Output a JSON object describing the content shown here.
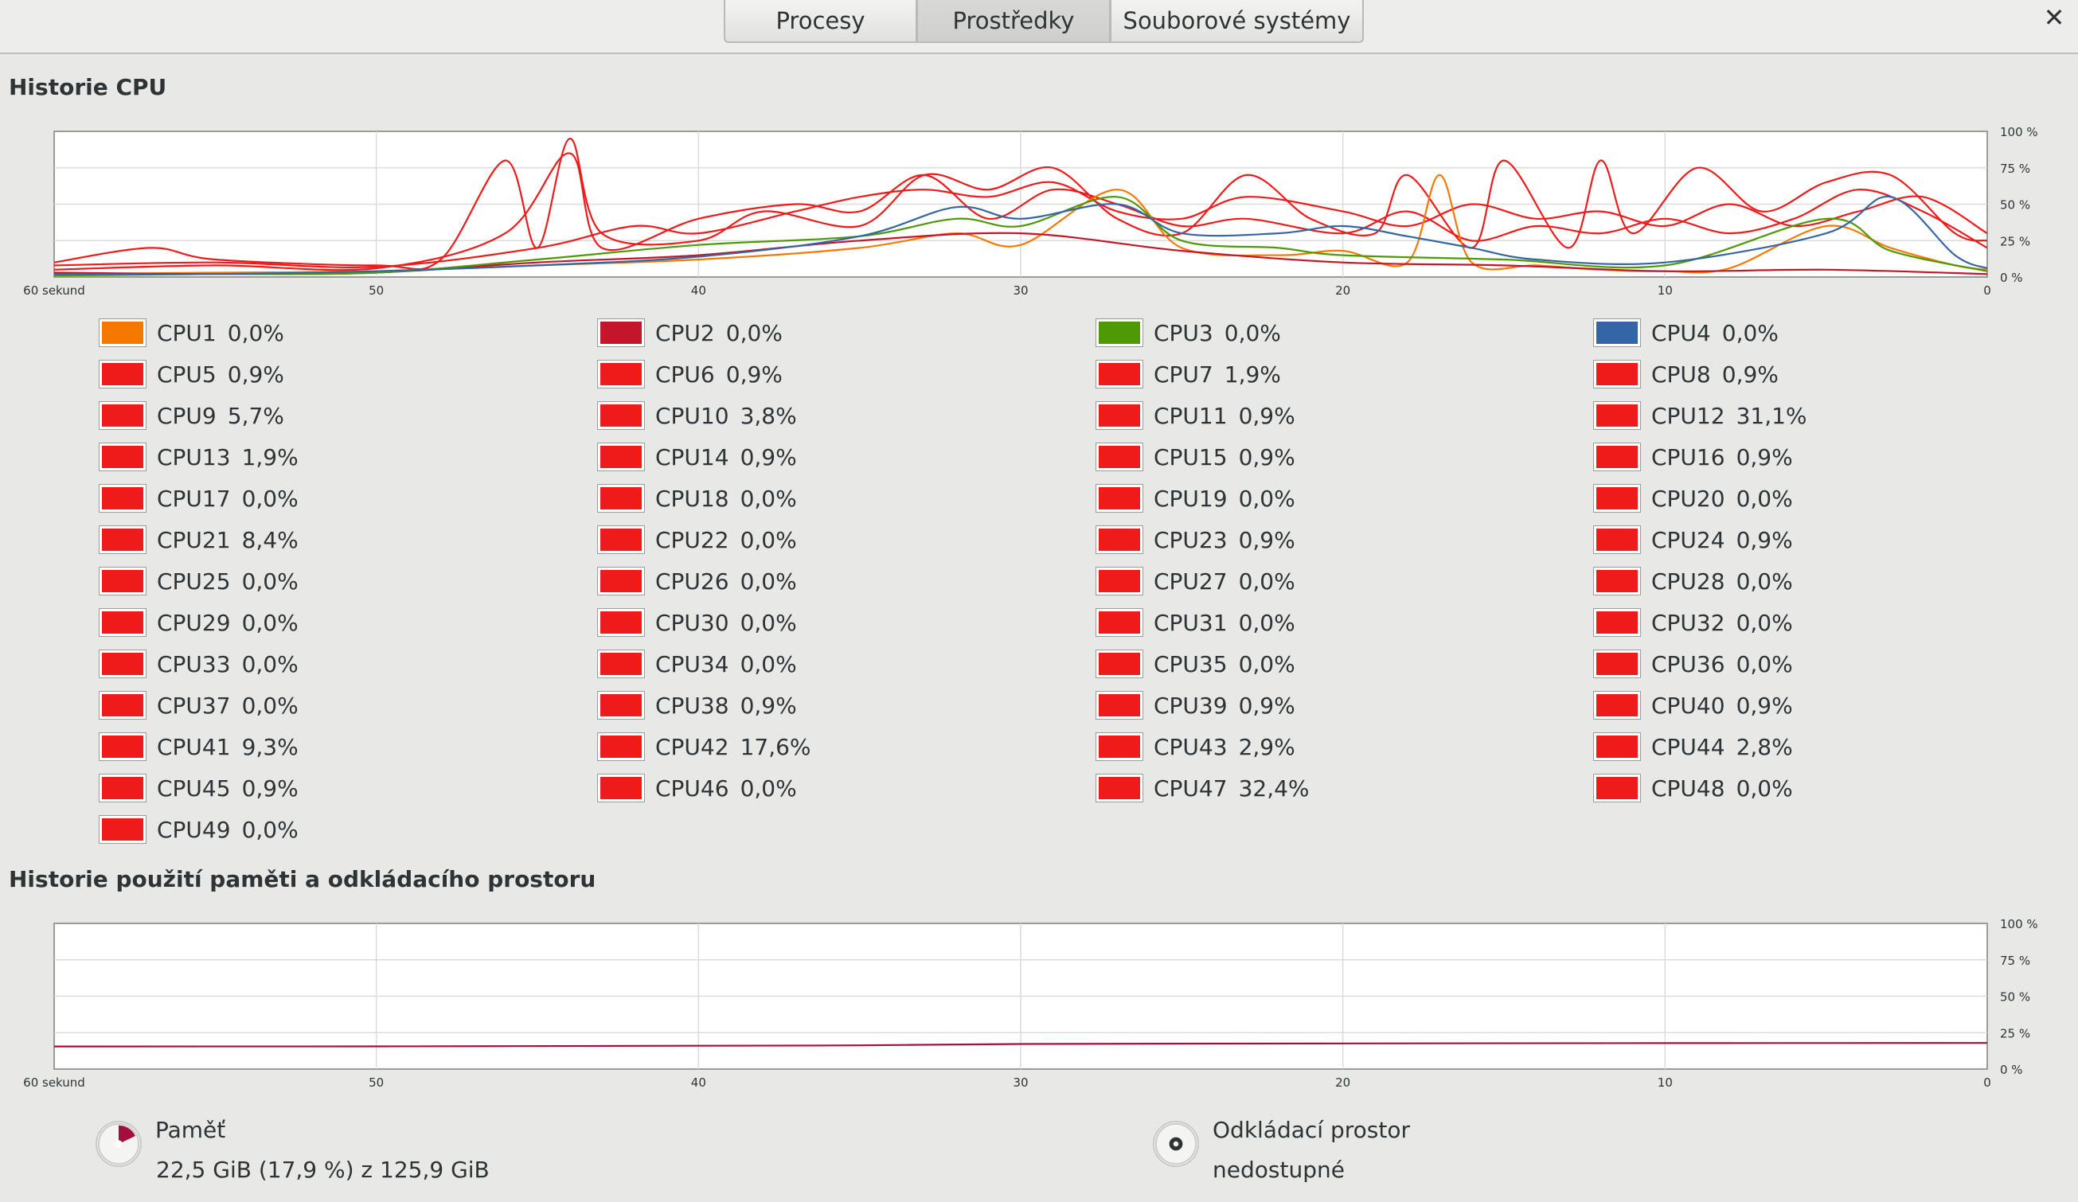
{
  "tabs": [
    {
      "label": "Procesy",
      "active": false
    },
    {
      "label": "Prostředky",
      "active": true
    },
    {
      "label": "Souborové systémy",
      "active": false
    }
  ],
  "close_icon": "close-icon",
  "cpu_section": {
    "title": "Historie CPU",
    "x_labels": [
      "60 sekund",
      "50",
      "40",
      "30",
      "20",
      "10",
      "0"
    ],
    "y_labels": [
      "100 %",
      "75 %",
      "50 %",
      "25 %",
      "0 %"
    ]
  },
  "cpus": [
    {
      "name": "CPU1",
      "value": "0,0%",
      "color": "#f57900"
    },
    {
      "name": "CPU2",
      "value": "0,0%",
      "color": "#c4162a"
    },
    {
      "name": "CPU3",
      "value": "0,0%",
      "color": "#4e9a06"
    },
    {
      "name": "CPU4",
      "value": "0,0%",
      "color": "#3465a4"
    },
    {
      "name": "CPU5",
      "value": "0,9%",
      "color": "#ef1a1a"
    },
    {
      "name": "CPU6",
      "value": "0,9%",
      "color": "#ef1a1a"
    },
    {
      "name": "CPU7",
      "value": "1,9%",
      "color": "#ef1a1a"
    },
    {
      "name": "CPU8",
      "value": "0,9%",
      "color": "#ef1a1a"
    },
    {
      "name": "CPU9",
      "value": "5,7%",
      "color": "#ef1a1a"
    },
    {
      "name": "CPU10",
      "value": "3,8%",
      "color": "#ef1a1a"
    },
    {
      "name": "CPU11",
      "value": "0,9%",
      "color": "#ef1a1a"
    },
    {
      "name": "CPU12",
      "value": "31,1%",
      "color": "#ef1a1a"
    },
    {
      "name": "CPU13",
      "value": "1,9%",
      "color": "#ef1a1a"
    },
    {
      "name": "CPU14",
      "value": "0,9%",
      "color": "#ef1a1a"
    },
    {
      "name": "CPU15",
      "value": "0,9%",
      "color": "#ef1a1a"
    },
    {
      "name": "CPU16",
      "value": "0,9%",
      "color": "#ef1a1a"
    },
    {
      "name": "CPU17",
      "value": "0,0%",
      "color": "#ef1a1a"
    },
    {
      "name": "CPU18",
      "value": "0,0%",
      "color": "#ef1a1a"
    },
    {
      "name": "CPU19",
      "value": "0,0%",
      "color": "#ef1a1a"
    },
    {
      "name": "CPU20",
      "value": "0,0%",
      "color": "#ef1a1a"
    },
    {
      "name": "CPU21",
      "value": "8,4%",
      "color": "#ef1a1a"
    },
    {
      "name": "CPU22",
      "value": "0,0%",
      "color": "#ef1a1a"
    },
    {
      "name": "CPU23",
      "value": "0,9%",
      "color": "#ef1a1a"
    },
    {
      "name": "CPU24",
      "value": "0,9%",
      "color": "#ef1a1a"
    },
    {
      "name": "CPU25",
      "value": "0,0%",
      "color": "#ef1a1a"
    },
    {
      "name": "CPU26",
      "value": "0,0%",
      "color": "#ef1a1a"
    },
    {
      "name": "CPU27",
      "value": "0,0%",
      "color": "#ef1a1a"
    },
    {
      "name": "CPU28",
      "value": "0,0%",
      "color": "#ef1a1a"
    },
    {
      "name": "CPU29",
      "value": "0,0%",
      "color": "#ef1a1a"
    },
    {
      "name": "CPU30",
      "value": "0,0%",
      "color": "#ef1a1a"
    },
    {
      "name": "CPU31",
      "value": "0,0%",
      "color": "#ef1a1a"
    },
    {
      "name": "CPU32",
      "value": "0,0%",
      "color": "#ef1a1a"
    },
    {
      "name": "CPU33",
      "value": "0,0%",
      "color": "#ef1a1a"
    },
    {
      "name": "CPU34",
      "value": "0,0%",
      "color": "#ef1a1a"
    },
    {
      "name": "CPU35",
      "value": "0,0%",
      "color": "#ef1a1a"
    },
    {
      "name": "CPU36",
      "value": "0,0%",
      "color": "#ef1a1a"
    },
    {
      "name": "CPU37",
      "value": "0,0%",
      "color": "#ef1a1a"
    },
    {
      "name": "CPU38",
      "value": "0,9%",
      "color": "#ef1a1a"
    },
    {
      "name": "CPU39",
      "value": "0,9%",
      "color": "#ef1a1a"
    },
    {
      "name": "CPU40",
      "value": "0,9%",
      "color": "#ef1a1a"
    },
    {
      "name": "CPU41",
      "value": "9,3%",
      "color": "#ef1a1a"
    },
    {
      "name": "CPU42",
      "value": "17,6%",
      "color": "#ef1a1a"
    },
    {
      "name": "CPU43",
      "value": "2,9%",
      "color": "#ef1a1a"
    },
    {
      "name": "CPU44",
      "value": "2,8%",
      "color": "#ef1a1a"
    },
    {
      "name": "CPU45",
      "value": "0,9%",
      "color": "#ef1a1a"
    },
    {
      "name": "CPU46",
      "value": "0,0%",
      "color": "#ef1a1a"
    },
    {
      "name": "CPU47",
      "value": "32,4%",
      "color": "#ef1a1a"
    },
    {
      "name": "CPU48",
      "value": "0,0%",
      "color": "#ef1a1a"
    },
    {
      "name": "CPU49",
      "value": "0,0%",
      "color": "#ef1a1a"
    }
  ],
  "mem_section": {
    "title": "Historie použití paměti a odkládacího prostoru",
    "x_labels": [
      "60 sekund",
      "50",
      "40",
      "30",
      "20",
      "10",
      "0"
    ],
    "y_labels": [
      "100 %",
      "75 %",
      "50 %",
      "25 %",
      "0 %"
    ]
  },
  "memory": {
    "label": "Paměť",
    "detail": "22,5 GiB (17,9 %) z 125,9 GiB",
    "percent": 17.9,
    "color": "#a50e3c",
    "icon": "memory-pie-icon"
  },
  "swap": {
    "label": "Odkládací prostor",
    "detail": "nedostupné",
    "icon": "swap-pie-icon"
  },
  "chart_data": [
    {
      "type": "line",
      "title": "Historie CPU",
      "x_range_seconds": [
        60,
        0
      ],
      "ylim": [
        0,
        100
      ],
      "y_unit": "%",
      "grid": true,
      "series_note_values": "per-CPU usage history, approximate",
      "series": [
        {
          "name": "CPU1",
          "points": [
            [
              60,
              2
            ],
            [
              55,
              3
            ],
            [
              50,
              4
            ],
            [
              45,
              8
            ],
            [
              40,
              12
            ],
            [
              35,
              20
            ],
            [
              32,
              30
            ],
            [
              30,
              22
            ],
            [
              27,
              60
            ],
            [
              25,
              20
            ],
            [
              22,
              15
            ],
            [
              20,
              18
            ],
            [
              18,
              10
            ],
            [
              17,
              70
            ],
            [
              16,
              10
            ],
            [
              14,
              8
            ],
            [
              12,
              5
            ],
            [
              10,
              4
            ],
            [
              8,
              6
            ],
            [
              5,
              35
            ],
            [
              3,
              20
            ],
            [
              1,
              8
            ],
            [
              0,
              5
            ]
          ]
        },
        {
          "name": "CPU2",
          "points": [
            [
              60,
              3
            ],
            [
              55,
              2
            ],
            [
              50,
              3
            ],
            [
              45,
              10
            ],
            [
              40,
              15
            ],
            [
              35,
              25
            ],
            [
              30,
              30
            ],
            [
              25,
              18
            ],
            [
              20,
              10
            ],
            [
              15,
              8
            ],
            [
              10,
              4
            ],
            [
              5,
              5
            ],
            [
              0,
              2
            ]
          ]
        },
        {
          "name": "CPU3",
          "points": [
            [
              60,
              1
            ],
            [
              55,
              2
            ],
            [
              50,
              3
            ],
            [
              45,
              12
            ],
            [
              40,
              22
            ],
            [
              35,
              28
            ],
            [
              32,
              40
            ],
            [
              30,
              35
            ],
            [
              27,
              55
            ],
            [
              25,
              25
            ],
            [
              22,
              20
            ],
            [
              20,
              15
            ],
            [
              15,
              12
            ],
            [
              10,
              8
            ],
            [
              5,
              40
            ],
            [
              3,
              18
            ],
            [
              0,
              4
            ]
          ]
        },
        {
          "name": "CPU4",
          "points": [
            [
              60,
              2
            ],
            [
              55,
              2
            ],
            [
              50,
              4
            ],
            [
              45,
              8
            ],
            [
              40,
              14
            ],
            [
              35,
              28
            ],
            [
              32,
              48
            ],
            [
              30,
              40
            ],
            [
              27,
              50
            ],
            [
              25,
              30
            ],
            [
              22,
              30
            ],
            [
              20,
              35
            ],
            [
              18,
              28
            ],
            [
              16,
              20
            ],
            [
              14,
              12
            ],
            [
              10,
              10
            ],
            [
              5,
              30
            ],
            [
              3,
              55
            ],
            [
              1,
              15
            ],
            [
              0,
              6
            ]
          ]
        },
        {
          "name": "CPU12",
          "points": [
            [
              60,
              10
            ],
            [
              57,
              20
            ],
            [
              55,
              12
            ],
            [
              50,
              8
            ],
            [
              48,
              12
            ],
            [
              46,
              80
            ],
            [
              45,
              20
            ],
            [
              44,
              95
            ],
            [
              43,
              30
            ],
            [
              40,
              25
            ],
            [
              38,
              45
            ],
            [
              35,
              35
            ],
            [
              33,
              70
            ],
            [
              31,
              60
            ],
            [
              29,
              75
            ],
            [
              27,
              40
            ],
            [
              25,
              30
            ],
            [
              23,
              70
            ],
            [
              21,
              40
            ],
            [
              19,
              30
            ],
            [
              18,
              70
            ],
            [
              16,
              20
            ],
            [
              15,
              80
            ],
            [
              13,
              20
            ],
            [
              12,
              80
            ],
            [
              11,
              30
            ],
            [
              9,
              75
            ],
            [
              7,
              45
            ],
            [
              5,
              65
            ],
            [
              3,
              70
            ],
            [
              1,
              30
            ],
            [
              0,
              25
            ]
          ]
        },
        {
          "name": "CPU42",
          "points": [
            [
              60,
              5
            ],
            [
              55,
              8
            ],
            [
              50,
              6
            ],
            [
              46,
              30
            ],
            [
              44,
              85
            ],
            [
              43,
              20
            ],
            [
              40,
              40
            ],
            [
              37,
              50
            ],
            [
              35,
              45
            ],
            [
              33,
              70
            ],
            [
              31,
              40
            ],
            [
              29,
              60
            ],
            [
              27,
              50
            ],
            [
              25,
              35
            ],
            [
              23,
              40
            ],
            [
              20,
              30
            ],
            [
              18,
              45
            ],
            [
              16,
              25
            ],
            [
              14,
              35
            ],
            [
              12,
              30
            ],
            [
              10,
              40
            ],
            [
              8,
              30
            ],
            [
              6,
              40
            ],
            [
              4,
              60
            ],
            [
              2,
              45
            ],
            [
              0,
              20
            ]
          ]
        },
        {
          "name": "CPU47",
          "points": [
            [
              60,
              8
            ],
            [
              55,
              10
            ],
            [
              50,
              7
            ],
            [
              45,
              20
            ],
            [
              42,
              35
            ],
            [
              40,
              30
            ],
            [
              37,
              45
            ],
            [
              35,
              55
            ],
            [
              33,
              60
            ],
            [
              31,
              55
            ],
            [
              29,
              65
            ],
            [
              27,
              45
            ],
            [
              25,
              40
            ],
            [
              23,
              55
            ],
            [
              20,
              45
            ],
            [
              18,
              35
            ],
            [
              16,
              50
            ],
            [
              14,
              40
            ],
            [
              12,
              45
            ],
            [
              10,
              35
            ],
            [
              8,
              50
            ],
            [
              6,
              35
            ],
            [
              4,
              45
            ],
            [
              2,
              55
            ],
            [
              0,
              30
            ]
          ]
        }
      ]
    },
    {
      "type": "line",
      "title": "Historie použití paměti a odkládacího prostoru",
      "x_range_seconds": [
        60,
        0
      ],
      "ylim": [
        0,
        100
      ],
      "y_unit": "%",
      "grid": true,
      "series": [
        {
          "name": "Paměť",
          "points": [
            [
              60,
              15.5
            ],
            [
              50,
              15.6
            ],
            [
              40,
              16.0
            ],
            [
              35,
              16.3
            ],
            [
              30,
              17.2
            ],
            [
              20,
              17.6
            ],
            [
              10,
              17.8
            ],
            [
              0,
              17.9
            ]
          ]
        }
      ]
    }
  ]
}
